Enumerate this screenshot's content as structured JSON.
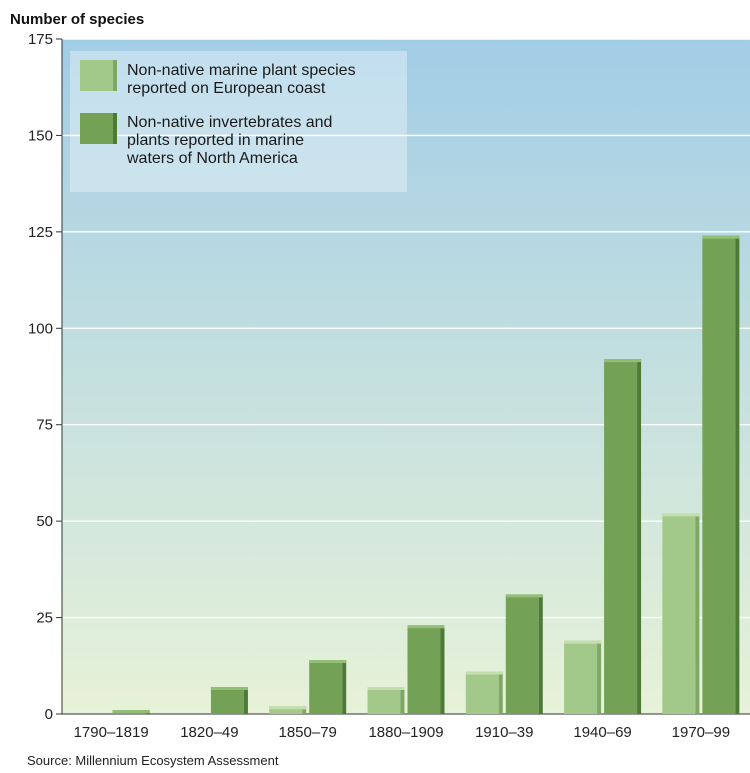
{
  "chart_data": {
    "type": "bar",
    "ylabel": "Number of species",
    "xlabel": "",
    "ylim": [
      0,
      175
    ],
    "yticks": [
      0,
      25,
      50,
      75,
      100,
      125,
      150,
      175
    ],
    "categories": [
      "1790–1819",
      "1820–49",
      "1850–79",
      "1880–1909",
      "1910–39",
      "1940–69",
      "1970–99"
    ],
    "series": [
      {
        "name_lines": [
          "Non-native marine plant species",
          "reported on European coast"
        ],
        "values": [
          0,
          0,
          2,
          7,
          11,
          19,
          52
        ],
        "color": "#a3c98a",
        "color_side": "#7fa866",
        "color_top": "#c3dfae"
      },
      {
        "name_lines": [
          "Non-native invertebrates and",
          "plants reported in marine",
          "waters of North America"
        ],
        "values": [
          1,
          7,
          14,
          23,
          31,
          92,
          124
        ],
        "color": "#73a257",
        "color_side": "#4e7a38",
        "color_top": "#93be78"
      }
    ],
    "grid": true,
    "legend_position": "top-left",
    "background_gradient": [
      "#a2cde6",
      "#e7f2d8"
    ],
    "source": "Source: Millennium Ecosystem Assessment"
  }
}
